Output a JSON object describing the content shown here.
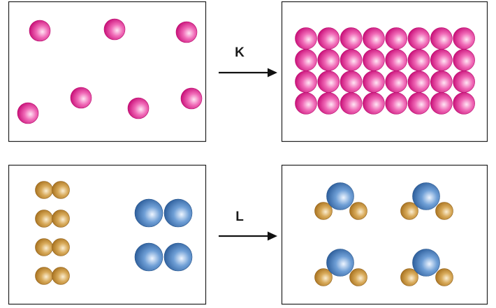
{
  "processes": [
    {
      "label": "K",
      "before": {
        "particles": [
          {
            "kind": "pink"
          },
          {
            "kind": "pink"
          },
          {
            "kind": "pink"
          },
          {
            "kind": "pink"
          },
          {
            "kind": "pink"
          },
          {
            "kind": "pink"
          },
          {
            "kind": "pink"
          }
        ]
      },
      "after": {
        "lattice_rows": 4,
        "lattice_cols": 8,
        "kind": "pink"
      }
    },
    {
      "label": "L",
      "before": {
        "gold_diatomic_count": 4,
        "blue_diatomic_count": 2
      },
      "after": {
        "triatomic_molecule_count": 4
      }
    }
  ],
  "colors": {
    "pink": "#e8198e",
    "gold": "#c48a2c",
    "blue": "#3f78b6",
    "arrow": "#111111",
    "frame": "#222222"
  }
}
